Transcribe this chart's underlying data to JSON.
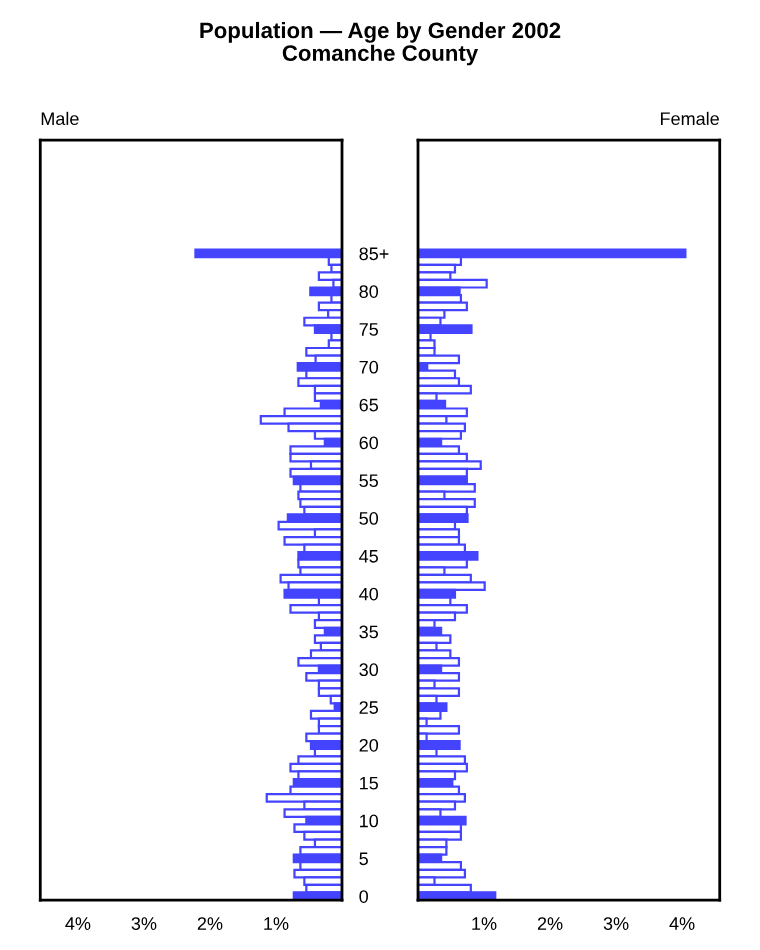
{
  "chart_data": [
    {
      "type": "bar",
      "orientation": "horizontal",
      "title": "Population — Age by Gender 2002",
      "subtitle": "Comanche County",
      "categories": [
        "85+",
        null,
        null,
        null,
        null,
        "80",
        null,
        null,
        null,
        null,
        "75",
        null,
        null,
        null,
        null,
        "70",
        null,
        null,
        null,
        null,
        "65",
        null,
        null,
        null,
        null,
        "60",
        null,
        null,
        null,
        null,
        "55",
        null,
        null,
        null,
        null,
        "50",
        null,
        null,
        null,
        null,
        "45",
        null,
        null,
        null,
        null,
        "40",
        null,
        null,
        null,
        null,
        "35",
        null,
        null,
        null,
        null,
        "30",
        null,
        null,
        null,
        null,
        "25",
        null,
        null,
        null,
        null,
        "20",
        null,
        null,
        null,
        null,
        "15",
        null,
        null,
        null,
        null,
        "10",
        null,
        null,
        null,
        null,
        "5",
        null,
        null,
        null,
        null,
        "0"
      ],
      "series": [
        {
          "name": "Male",
          "color": "#4444ff",
          "colors": [
            "#4444ff",
            "#ffffff",
            "#ffffff",
            "#ffffff",
            "#ffffff",
            "#4444ff",
            "#ffffff",
            "#ffffff",
            "#ffffff",
            "#ffffff",
            "#4444ff",
            "#ffffff",
            "#ffffff",
            "#ffffff",
            "#ffffff",
            "#4444ff",
            "#ffffff",
            "#ffffff",
            "#ffffff",
            "#ffffff",
            "#4444ff",
            "#ffffff",
            "#ffffff",
            "#ffffff",
            "#ffffff",
            "#4444ff",
            "#ffffff",
            "#ffffff",
            "#ffffff",
            "#ffffff",
            "#4444ff",
            "#ffffff",
            "#ffffff",
            "#ffffff",
            "#ffffff",
            "#4444ff",
            "#ffffff",
            "#ffffff",
            "#ffffff",
            "#ffffff",
            "#4444ff",
            "#ffffff",
            "#ffffff",
            "#ffffff",
            "#ffffff",
            "#4444ff",
            "#ffffff",
            "#ffffff",
            "#ffffff",
            "#ffffff",
            "#4444ff",
            "#ffffff",
            "#ffffff",
            "#ffffff",
            "#ffffff",
            "#4444ff",
            "#ffffff",
            "#ffffff",
            "#ffffff",
            "#ffffff",
            "#4444ff",
            "#ffffff",
            "#ffffff",
            "#ffffff",
            "#ffffff",
            "#4444ff",
            "#ffffff",
            "#ffffff",
            "#ffffff",
            "#ffffff",
            "#4444ff",
            "#ffffff",
            "#ffffff",
            "#ffffff",
            "#ffffff",
            "#4444ff",
            "#ffffff",
            "#ffffff",
            "#ffffff",
            "#ffffff",
            "#4444ff",
            "#ffffff",
            "#ffffff",
            "#ffffff",
            "#ffffff",
            "#4444ff"
          ],
          "values": [
            2.22,
            0.2,
            0.16,
            0.35,
            0.13,
            0.48,
            0.16,
            0.35,
            0.21,
            0.57,
            0.41,
            0.16,
            0.2,
            0.54,
            0.4,
            0.67,
            0.54,
            0.66,
            0.41,
            0.41,
            0.32,
            0.87,
            1.23,
            0.81,
            0.41,
            0.26,
            0.78,
            0.78,
            0.47,
            0.78,
            0.73,
            0.63,
            0.66,
            0.63,
            0.57,
            0.82,
            0.96,
            0.41,
            0.87,
            0.57,
            0.66,
            0.66,
            0.63,
            0.93,
            0.81,
            0.87,
            0.35,
            0.78,
            0.35,
            0.41,
            0.26,
            0.41,
            0.32,
            0.47,
            0.66,
            0.35,
            0.54,
            0.35,
            0.35,
            0.17,
            0.11,
            0.47,
            0.35,
            0.35,
            0.54,
            0.47,
            0.41,
            0.66,
            0.78,
            0.66,
            0.73,
            0.78,
            1.14,
            0.57,
            0.87,
            0.54,
            0.72,
            0.57,
            0.41,
            0.63,
            0.73,
            0.63,
            0.72,
            0.57,
            0.54,
            0.73
          ]
        }
      ],
      "xlim": [
        4.57,
        0
      ],
      "xticks": [
        {
          "value": 1,
          "label": "1%"
        },
        {
          "value": 2,
          "label": "2%"
        },
        {
          "value": 3,
          "label": "3%"
        },
        {
          "value": 4,
          "label": "4%"
        }
      ],
      "grid": false
    },
    {
      "type": "bar",
      "orientation": "horizontal",
      "tick_labels": "x",
      "categories": [
        null,
        null,
        null,
        null,
        null,
        null,
        null,
        null,
        null,
        null,
        null,
        null,
        null,
        null,
        null,
        null,
        null,
        null,
        null,
        null,
        null,
        null,
        null,
        null,
        null,
        null,
        null,
        null,
        null,
        null,
        null,
        null,
        null,
        null,
        null,
        null,
        null,
        null,
        null,
        null,
        null,
        null,
        null,
        null,
        null,
        null,
        null,
        null,
        null,
        null,
        null,
        null,
        null,
        null,
        null,
        null,
        null,
        null,
        null,
        null,
        null,
        null,
        null,
        null,
        null,
        null,
        null,
        null,
        null,
        null,
        null,
        null,
        null,
        null,
        null,
        null,
        null,
        null,
        null,
        null,
        null,
        null,
        null,
        null,
        null,
        null
      ],
      "series": [
        {
          "name": "Female",
          "color": "#4444ff",
          "colors": [
            "#4444ff",
            "#ffffff",
            "#ffffff",
            "#ffffff",
            "#ffffff",
            "#4444ff",
            "#ffffff",
            "#ffffff",
            "#ffffff",
            "#ffffff",
            "#4444ff",
            "#ffffff",
            "#ffffff",
            "#ffffff",
            "#ffffff",
            "#4444ff",
            "#ffffff",
            "#ffffff",
            "#ffffff",
            "#ffffff",
            "#4444ff",
            "#ffffff",
            "#ffffff",
            "#ffffff",
            "#ffffff",
            "#4444ff",
            "#ffffff",
            "#ffffff",
            "#ffffff",
            "#ffffff",
            "#4444ff",
            "#ffffff",
            "#ffffff",
            "#ffffff",
            "#ffffff",
            "#4444ff",
            "#ffffff",
            "#ffffff",
            "#ffffff",
            "#ffffff",
            "#4444ff",
            "#ffffff",
            "#ffffff",
            "#ffffff",
            "#ffffff",
            "#4444ff",
            "#ffffff",
            "#ffffff",
            "#ffffff",
            "#ffffff",
            "#4444ff",
            "#ffffff",
            "#ffffff",
            "#ffffff",
            "#ffffff",
            "#4444ff",
            "#ffffff",
            "#ffffff",
            "#ffffff",
            "#ffffff",
            "#4444ff",
            "#ffffff",
            "#ffffff",
            "#ffffff",
            "#ffffff",
            "#4444ff",
            "#ffffff",
            "#ffffff",
            "#ffffff",
            "#ffffff",
            "#4444ff",
            "#ffffff",
            "#ffffff",
            "#ffffff",
            "#ffffff",
            "#4444ff",
            "#ffffff",
            "#ffffff",
            "#ffffff",
            "#ffffff",
            "#4444ff",
            "#ffffff",
            "#ffffff",
            "#ffffff",
            "#ffffff",
            "#4444ff"
          ],
          "values": [
            4.05,
            0.65,
            0.56,
            0.49,
            1.04,
            0.63,
            0.65,
            0.74,
            0.4,
            0.34,
            0.81,
            0.19,
            0.25,
            0.25,
            0.62,
            0.14,
            0.56,
            0.62,
            0.8,
            0.28,
            0.41,
            0.74,
            0.43,
            0.71,
            0.65,
            0.35,
            0.62,
            0.74,
            0.95,
            0.74,
            0.74,
            0.86,
            0.4,
            0.86,
            0.74,
            0.75,
            0.56,
            0.62,
            0.62,
            0.71,
            0.9,
            0.74,
            0.4,
            0.8,
            1.01,
            0.56,
            0.49,
            0.74,
            0.56,
            0.25,
            0.35,
            0.49,
            0.28,
            0.49,
            0.62,
            0.35,
            0.62,
            0.25,
            0.62,
            0.28,
            0.43,
            0.34,
            0.13,
            0.62,
            0.13,
            0.63,
            0.28,
            0.71,
            0.74,
            0.56,
            0.52,
            0.62,
            0.71,
            0.56,
            0.34,
            0.72,
            0.65,
            0.65,
            0.43,
            0.43,
            0.35,
            0.65,
            0.71,
            0.25,
            0.8,
            1.17
          ]
        }
      ],
      "xlim": [
        0,
        4.57
      ],
      "xticks": [
        {
          "value": 1,
          "label": "1%"
        },
        {
          "value": 2,
          "label": "2%"
        },
        {
          "value": 3,
          "label": "3%"
        },
        {
          "value": 4,
          "label": "4%"
        }
      ],
      "grid": false
    }
  ]
}
